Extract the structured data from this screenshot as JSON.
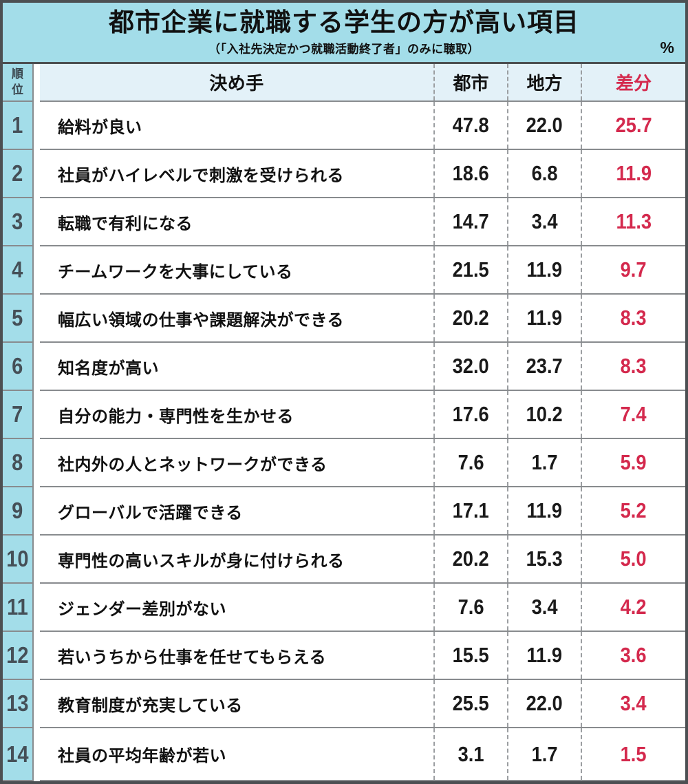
{
  "chart_data": {
    "type": "table",
    "title": "都市企業に就職する学生の方が高い項目",
    "subtitle": "（「入社先決定かつ就職活動終了者」のみに聴取）",
    "unit": "%",
    "columns": {
      "rank": "順位",
      "factor": "決め手",
      "urban": "都市",
      "rural": "地方",
      "diff": "差分"
    },
    "rows": [
      {
        "rank": "1",
        "factor": "給料が良い",
        "urban": "47.8",
        "rural": "22.0",
        "diff": "25.7"
      },
      {
        "rank": "2",
        "factor": "社員がハイレベルで刺激を受けられる",
        "urban": "18.6",
        "rural": "6.8",
        "diff": "11.9"
      },
      {
        "rank": "3",
        "factor": "転職で有利になる",
        "urban": "14.7",
        "rural": "3.4",
        "diff": "11.3"
      },
      {
        "rank": "4",
        "factor": "チームワークを大事にしている",
        "urban": "21.5",
        "rural": "11.9",
        "diff": "9.7"
      },
      {
        "rank": "5",
        "factor": "幅広い領域の仕事や課題解決ができる",
        "urban": "20.2",
        "rural": "11.9",
        "diff": "8.3"
      },
      {
        "rank": "6",
        "factor": "知名度が高い",
        "urban": "32.0",
        "rural": "23.7",
        "diff": "8.3"
      },
      {
        "rank": "7",
        "factor": "自分の能力・専門性を生かせる",
        "urban": "17.6",
        "rural": "10.2",
        "diff": "7.4"
      },
      {
        "rank": "8",
        "factor": "社内外の人とネットワークができる",
        "urban": "7.6",
        "rural": "1.7",
        "diff": "5.9"
      },
      {
        "rank": "9",
        "factor": "グローバルで活躍できる",
        "urban": "17.1",
        "rural": "11.9",
        "diff": "5.2"
      },
      {
        "rank": "10",
        "factor": "専門性の高いスキルが身に付けられる",
        "urban": "20.2",
        "rural": "15.3",
        "diff": "5.0"
      },
      {
        "rank": "11",
        "factor": "ジェンダー差別がない",
        "urban": "7.6",
        "rural": "3.4",
        "diff": "4.2"
      },
      {
        "rank": "12",
        "factor": "若いうちから仕事を任せてもらえる",
        "urban": "15.5",
        "rural": "11.9",
        "diff": "3.6"
      },
      {
        "rank": "13",
        "factor": "教育制度が充実している",
        "urban": "25.5",
        "rural": "22.0",
        "diff": "3.4"
      },
      {
        "rank": "14",
        "factor": "社員の平均年齢が若い",
        "urban": "3.1",
        "rural": "1.7",
        "diff": "1.5"
      }
    ]
  },
  "colors": {
    "band_cyan": "#a3dde9",
    "header_blue": "#e3f1f8",
    "accent_red": "#d4294d",
    "frame_gray": "#4c4f52"
  }
}
